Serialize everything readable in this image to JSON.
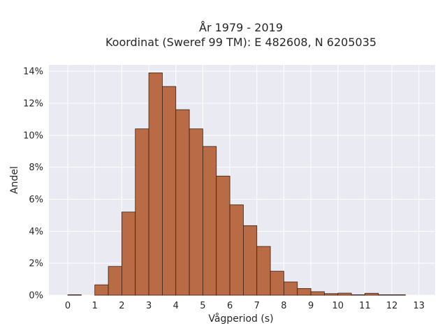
{
  "chart_data": {
    "type": "bar",
    "title_lines": [
      "År 1979 - 2019",
      "Koordinat (Sweref 99 TM): E 482608, N 6205035"
    ],
    "xlabel": "Vågperiod (s)",
    "ylabel": "Andel",
    "xlim": [
      -0.7,
      13.6
    ],
    "ylim": [
      0,
      14.4
    ],
    "xticks": [
      0,
      1,
      2,
      3,
      4,
      5,
      6,
      7,
      8,
      9,
      10,
      11,
      12,
      13
    ],
    "yticks": [
      {
        "value": 0,
        "label": "0%"
      },
      {
        "value": 2,
        "label": "2%"
      },
      {
        "value": 4,
        "label": "4%"
      },
      {
        "value": 6,
        "label": "6%"
      },
      {
        "value": 8,
        "label": "8%"
      },
      {
        "value": 10,
        "label": "10%"
      },
      {
        "value": 12,
        "label": "12%"
      },
      {
        "value": 14,
        "label": "14%"
      }
    ],
    "bin_width": 0.5,
    "bins_start": [
      0,
      1,
      1.5,
      2,
      2.5,
      3,
      3.5,
      4,
      4.5,
      5,
      5.5,
      6,
      6.5,
      7,
      7.5,
      8,
      8.5,
      9,
      9.5,
      10,
      10.5,
      11,
      11.5,
      12
    ],
    "values": [
      0.03,
      0.65,
      1.8,
      5.2,
      10.4,
      13.9,
      13.05,
      11.6,
      10.4,
      9.3,
      7.45,
      5.65,
      4.35,
      3.05,
      1.5,
      0.83,
      0.42,
      0.22,
      0.1,
      0.13,
      0.03,
      0.12,
      0.03,
      0.03
    ],
    "grid": true,
    "colors": {
      "bar_fill": "#b86b44",
      "bar_edge": "#3b1f12",
      "plot_background": "#eaeaf2",
      "grid": "#ffffff"
    }
  }
}
